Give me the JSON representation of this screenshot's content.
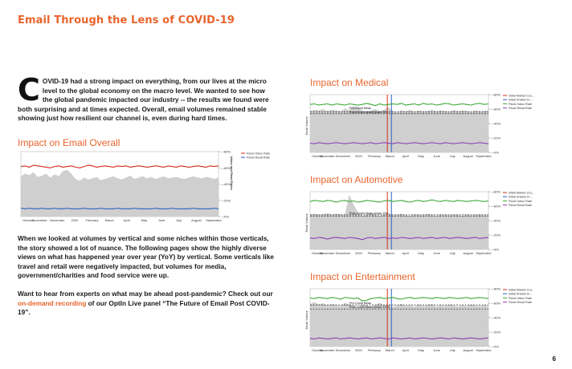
{
  "page_title": "Email Through the Lens of COVID-19",
  "intro": {
    "dropcap": "C",
    "text": "OVID-19 had a strong impact on everything, from our lives at the micro level to the global economy on the macro level. We wanted to see how the global pandemic impacted our industry -- the results we found were both surprising and at times expected. Overall, email volumes remained stable showing just how resilient our channel is, even during hard times."
  },
  "paragraph2": "When we looked at volumes by vertical and some niches within those verticals, the story showed a lot of nuance. The following pages show the highly diverse views on what has happened year over year (YoY) by vertical. Some verticals like travel and retail were negatively impacted, but volumes for media, government/charities and food service were up.",
  "paragraph3": {
    "pre": "Want to hear from experts on what may be ahead post-pandemic? Check out our ",
    "link": "on-demand recording",
    "post": " of our OptIn Live panel “The Future of Email Post COVID-19”."
  },
  "page_number": "6",
  "colors": {
    "accent": "#e8642c",
    "red": "#d42a1e",
    "green": "#3aa635",
    "purple": "#8e3fb5",
    "blue": "#2a5fc4",
    "area": "#cfcfcf"
  },
  "chart_data": [
    {
      "id": "overall",
      "type": "line",
      "title": "Impact on Email Overall",
      "x_ticks": [
        "October",
        "November",
        "December",
        "2020",
        "February",
        "March",
        "April",
        "May",
        "June",
        "July",
        "August",
        "September"
      ],
      "y_right_ticks": [
        "0%",
        "20%",
        "40%",
        "60%",
        "80%"
      ],
      "y_right_label": "Inbox and Read Rates",
      "legend": [
        "Panel Inbox Rate",
        "Panel Read Rate"
      ],
      "series": [
        {
          "name": "Panel Inbox Rate",
          "color": "#d42a1e",
          "values": [
            0.77,
            0.78,
            0.76,
            0.79,
            0.78,
            0.77,
            0.76,
            0.75,
            0.77,
            0.78,
            0.76,
            0.77,
            0.78,
            0.76,
            0.75,
            0.77,
            0.79,
            0.78,
            0.76,
            0.77,
            0.78,
            0.77,
            0.76,
            0.78,
            0.77,
            0.78,
            0.76,
            0.77,
            0.78,
            0.77,
            0.76,
            0.77,
            0.78,
            0.77,
            0.76,
            0.78,
            0.77,
            0.76,
            0.78,
            0.77,
            0.76,
            0.77,
            0.78,
            0.77,
            0.76,
            0.78,
            0.77,
            0.78
          ]
        },
        {
          "name": "Panel Read Rate",
          "color": "#2a5fc4",
          "values": [
            0.13,
            0.12,
            0.13,
            0.12,
            0.12,
            0.13,
            0.12,
            0.12,
            0.13,
            0.12,
            0.12,
            0.13,
            0.12,
            0.12,
            0.12,
            0.13,
            0.12,
            0.12,
            0.12,
            0.13,
            0.12,
            0.12,
            0.12,
            0.13,
            0.12,
            0.12,
            0.12,
            0.13,
            0.12,
            0.12,
            0.12,
            0.12,
            0.13,
            0.12,
            0.12,
            0.12,
            0.13,
            0.12,
            0.12,
            0.12,
            0.12,
            0.13,
            0.12,
            0.12,
            0.12,
            0.12,
            0.13,
            0.12
          ]
        },
        {
          "name": "Volume",
          "values": [
            0.62,
            0.66,
            0.64,
            0.68,
            0.61,
            0.63,
            0.66,
            0.6,
            0.65,
            0.62,
            0.7,
            0.72,
            0.66,
            0.58,
            0.55,
            0.6,
            0.57,
            0.59,
            0.61,
            0.56,
            0.58,
            0.6,
            0.62,
            0.59,
            0.57,
            0.6,
            0.63,
            0.58,
            0.6,
            0.62,
            0.59,
            0.61,
            0.58,
            0.6,
            0.62,
            0.59,
            0.6,
            0.61,
            0.59,
            0.58,
            0.6,
            0.62,
            0.6,
            0.59,
            0.61,
            0.6,
            0.58,
            0.6
          ]
        }
      ]
    },
    {
      "id": "medical",
      "type": "line",
      "title": "Impact on Medical",
      "x_ticks": [
        "October",
        "November",
        "December",
        "2020",
        "February",
        "March",
        "April",
        "May",
        "June",
        "July",
        "August",
        "September"
      ],
      "y_right_ticks": [
        "0%",
        "20%",
        "40%",
        "60%",
        "80%"
      ],
      "y_left_label": "Email Volume",
      "annotations": [
        "Pre-Covid Mean",
        "Post-Covid Mean (down 3%)"
      ],
      "legend": [
        "Initial Market Cra...",
        "Initial Shelter-in-...",
        "Panel Inbox Rate",
        "Panel Read Rate"
      ],
      "series": [
        {
          "name": "Panel Inbox Rate",
          "color": "#3aa635",
          "values": [
            0.83,
            0.84,
            0.82,
            0.83,
            0.84,
            0.82,
            0.84,
            0.83,
            0.82,
            0.84,
            0.83,
            0.82,
            0.83,
            0.85,
            0.83,
            0.81,
            0.84,
            0.82,
            0.83,
            0.84,
            0.83,
            0.85,
            0.82,
            0.83,
            0.84,
            0.82,
            0.85,
            0.83,
            0.84,
            0.82,
            0.83,
            0.85,
            0.84,
            0.82,
            0.83,
            0.84,
            0.83,
            0.82,
            0.84,
            0.85,
            0.83,
            0.84
          ]
        },
        {
          "name": "Panel Read Rate",
          "color": "#8e3fb5",
          "values": [
            0.16,
            0.15,
            0.17,
            0.16,
            0.15,
            0.16,
            0.17,
            0.16,
            0.15,
            0.16,
            0.17,
            0.16,
            0.15,
            0.16,
            0.17,
            0.15,
            0.16,
            0.17,
            0.16,
            0.15,
            0.17,
            0.16,
            0.15,
            0.16,
            0.17,
            0.16,
            0.15,
            0.16,
            0.17,
            0.16,
            0.15,
            0.17,
            0.16,
            0.15,
            0.16,
            0.17,
            0.16,
            0.15,
            0.16,
            0.17,
            0.16,
            0.15
          ]
        },
        {
          "name": "Volume",
          "values": [
            0.72,
            0.74,
            0.73,
            0.75,
            0.72,
            0.74,
            0.73,
            0.71,
            0.76,
            0.73,
            0.8,
            0.79,
            0.72,
            0.7,
            0.73,
            0.75,
            0.72,
            0.74,
            0.78,
            0.72,
            0.69,
            0.73,
            0.71,
            0.74,
            0.7,
            0.73,
            0.71,
            0.72,
            0.74,
            0.71,
            0.73,
            0.72,
            0.7,
            0.74,
            0.71,
            0.73,
            0.72,
            0.7,
            0.73,
            0.71,
            0.72,
            0.73
          ]
        }
      ],
      "pre_mean": 0.7,
      "post_mean": 0.67
    },
    {
      "id": "automotive",
      "type": "line",
      "title": "Impact on Automotive",
      "x_ticks": [
        "October",
        "November",
        "December",
        "2020",
        "February",
        "March",
        "April",
        "May",
        "June",
        "July",
        "August",
        "September"
      ],
      "y_right_ticks": [
        "0%",
        "20%",
        "40%",
        "60%",
        "80%"
      ],
      "y_left_label": "Email Volume",
      "annotations": [
        "Post-Covid Mean (down 2%)"
      ],
      "legend": [
        "Initial Market Cra...",
        "Initial Shelter-in-...",
        "Panel Inbox Rate",
        "Panel Read Rate"
      ],
      "series": [
        {
          "name": "Panel Inbox Rate",
          "color": "#3aa635",
          "values": [
            0.83,
            0.85,
            0.84,
            0.83,
            0.85,
            0.84,
            0.82,
            0.84,
            0.85,
            0.83,
            0.84,
            0.82,
            0.83,
            0.85,
            0.84,
            0.83,
            0.82,
            0.84,
            0.85,
            0.83,
            0.84,
            0.85,
            0.83,
            0.82,
            0.84,
            0.85,
            0.83,
            0.84,
            0.86,
            0.84,
            0.83,
            0.85,
            0.84,
            0.83,
            0.85,
            0.84,
            0.83,
            0.84,
            0.85,
            0.84,
            0.83,
            0.84
          ]
        },
        {
          "name": "Panel Read Rate",
          "color": "#8e3fb5",
          "values": [
            0.2,
            0.19,
            0.21,
            0.2,
            0.18,
            0.2,
            0.21,
            0.2,
            0.19,
            0.21,
            0.2,
            0.19,
            0.17,
            0.2,
            0.21,
            0.19,
            0.2,
            0.21,
            0.19,
            0.2,
            0.19,
            0.21,
            0.2,
            0.19,
            0.2,
            0.21,
            0.19,
            0.2,
            0.21,
            0.19,
            0.2,
            0.21,
            0.19,
            0.2,
            0.21,
            0.2,
            0.19,
            0.2,
            0.21,
            0.19,
            0.2,
            0.21
          ]
        },
        {
          "name": "Volume",
          "values": [
            0.6,
            0.62,
            0.6,
            0.61,
            0.63,
            0.6,
            0.62,
            0.61,
            0.6,
            0.95,
            0.78,
            0.64,
            0.58,
            0.6,
            0.63,
            0.6,
            0.58,
            0.61,
            0.63,
            0.59,
            0.6,
            0.62,
            0.59,
            0.58,
            0.61,
            0.6,
            0.59,
            0.62,
            0.6,
            0.58,
            0.61,
            0.6,
            0.59,
            0.61,
            0.6,
            0.58,
            0.61,
            0.59,
            0.6,
            0.61,
            0.59,
            0.6
          ]
        }
      ],
      "pre_mean": 0.6,
      "post_mean": 0.58
    },
    {
      "id": "entertainment",
      "type": "line",
      "title": "Impact on Entertainment",
      "x_ticks": [
        "October",
        "November",
        "December",
        "2020",
        "February",
        "March",
        "April",
        "May",
        "June",
        "July",
        "August",
        "September"
      ],
      "y_right_ticks": [
        "0%",
        "20%",
        "40%",
        "60%",
        "80%"
      ],
      "y_left_label": "Email Volume",
      "annotations": [
        "Pre-Covid Mean",
        "Post-Covid Mean (down 13%)"
      ],
      "legend": [
        "Initial Market Cra...",
        "Initial Shelter-in-...",
        "Panel Inbox Rate",
        "Panel Read Rate"
      ],
      "series": [
        {
          "name": "Panel Inbox Rate",
          "color": "#3aa635",
          "values": [
            0.84,
            0.83,
            0.85,
            0.84,
            0.83,
            0.85,
            0.84,
            0.82,
            0.85,
            0.84,
            0.83,
            0.84,
            0.79,
            0.8,
            0.83,
            0.84,
            0.85,
            0.83,
            0.84,
            0.85,
            0.83,
            0.82,
            0.84,
            0.85,
            0.83,
            0.84,
            0.85,
            0.84,
            0.83,
            0.85,
            0.84,
            0.83,
            0.85,
            0.84,
            0.83,
            0.84,
            0.85,
            0.83,
            0.84,
            0.85,
            0.84,
            0.83
          ]
        },
        {
          "name": "Panel Read Rate",
          "color": "#8e3fb5",
          "values": [
            0.14,
            0.13,
            0.15,
            0.14,
            0.13,
            0.14,
            0.15,
            0.13,
            0.14,
            0.15,
            0.14,
            0.13,
            0.14,
            0.15,
            0.13,
            0.14,
            0.15,
            0.14,
            0.13,
            0.15,
            0.14,
            0.13,
            0.14,
            0.15,
            0.13,
            0.14,
            0.15,
            0.14,
            0.13,
            0.14,
            0.15,
            0.14,
            0.13,
            0.15,
            0.14,
            0.13,
            0.14,
            0.15,
            0.14,
            0.13,
            0.14,
            0.15
          ]
        },
        {
          "name": "Volume",
          "values": [
            0.74,
            0.77,
            0.73,
            0.75,
            0.71,
            0.74,
            0.72,
            0.7,
            0.76,
            0.73,
            0.71,
            0.68,
            0.73,
            0.71,
            0.69,
            0.72,
            0.76,
            0.71,
            0.73,
            0.69,
            0.71,
            0.74,
            0.7,
            0.72,
            0.69,
            0.73,
            0.7,
            0.72,
            0.74,
            0.69,
            0.72,
            0.7,
            0.73,
            0.71,
            0.69,
            0.72,
            0.7,
            0.73,
            0.71,
            0.7,
            0.72,
            0.7
          ]
        }
      ],
      "pre_mean": 0.72,
      "post_mean": 0.65
    }
  ]
}
